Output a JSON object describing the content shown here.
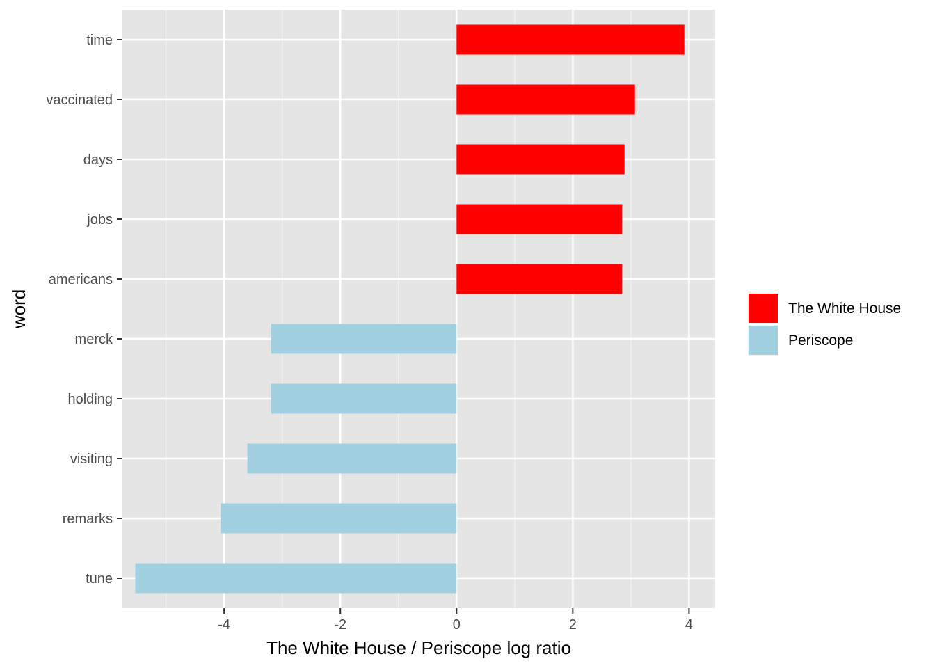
{
  "chart_data": {
    "type": "bar",
    "orientation": "horizontal",
    "xlabel": "The White House / Periscope log ratio",
    "ylabel": "word",
    "xlim": [
      -5.75,
      4.45
    ],
    "x_ticks": [
      -4,
      -2,
      0,
      2,
      4
    ],
    "x_tick_labels": [
      "-4",
      "-2",
      "0",
      "2",
      "4"
    ],
    "grid": true,
    "legend_position": "right",
    "legend": [
      {
        "label": "The White House",
        "color": "#ff0000"
      },
      {
        "label": "Periscope",
        "color": "#a1d0e1"
      }
    ],
    "categories": [
      "time",
      "vaccinated",
      "days",
      "jobs",
      "americans",
      "merck",
      "holding",
      "visiting",
      "remarks",
      "tune"
    ],
    "values": [
      3.92,
      3.07,
      2.89,
      2.85,
      2.85,
      -3.19,
      -3.19,
      -3.6,
      -4.06,
      -5.53
    ],
    "groups": [
      "The White House",
      "The White House",
      "The White House",
      "The White House",
      "The White House",
      "Periscope",
      "Periscope",
      "Periscope",
      "Periscope",
      "Periscope"
    ]
  }
}
